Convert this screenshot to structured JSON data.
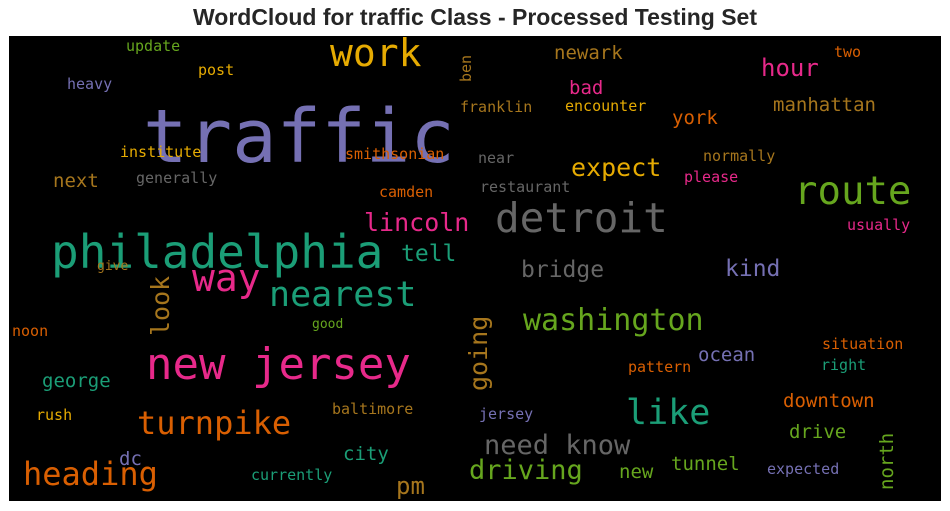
{
  "chart_data": {
    "type": "wordcloud",
    "title": "WordCloud for traffic Class - Processed Testing Set",
    "background": "#000000",
    "words": [
      {
        "text": "traffic",
        "weight": 100,
        "color": "#7570b3"
      },
      {
        "text": "philadelphia",
        "weight": 57,
        "color": "#1b9e77"
      },
      {
        "text": "new jersey",
        "weight": 55,
        "color": "#e7298a"
      },
      {
        "text": "detroit",
        "weight": 52,
        "color": "#666666"
      },
      {
        "text": "route",
        "weight": 50,
        "color": "#66a61e"
      },
      {
        "text": "work",
        "weight": 48,
        "color": "#e6ab02"
      },
      {
        "text": "way",
        "weight": 48,
        "color": "#e7298a"
      },
      {
        "text": "nearest",
        "weight": 44,
        "color": "#1b9e77"
      },
      {
        "text": "like",
        "weight": 44,
        "color": "#1b9e77"
      },
      {
        "text": "turnpike",
        "weight": 40,
        "color": "#d95f02"
      },
      {
        "text": "heading",
        "weight": 40,
        "color": "#d95f02"
      },
      {
        "text": "washington",
        "weight": 37,
        "color": "#66a61e"
      },
      {
        "text": "need know",
        "weight": 33,
        "color": "#666666"
      },
      {
        "text": "driving",
        "weight": 33,
        "color": "#66a61e"
      },
      {
        "text": "expect",
        "weight": 31,
        "color": "#e6ab02"
      },
      {
        "text": "lincoln",
        "weight": 31,
        "color": "#e7298a"
      },
      {
        "text": "look",
        "weight": 31,
        "color": "#a6761d"
      },
      {
        "text": "going",
        "weight": 31,
        "color": "#a6761d"
      },
      {
        "text": "hour",
        "weight": 30,
        "color": "#e7298a"
      },
      {
        "text": "pm",
        "weight": 30,
        "color": "#a6761d"
      },
      {
        "text": "bridge",
        "weight": 28,
        "color": "#666666"
      },
      {
        "text": "kind",
        "weight": 28,
        "color": "#7570b3"
      },
      {
        "text": "tell",
        "weight": 28,
        "color": "#1b9e77"
      },
      {
        "text": "manhattan",
        "weight": 24,
        "color": "#a6761d"
      },
      {
        "text": "york",
        "weight": 24,
        "color": "#d95f02"
      },
      {
        "text": "newark",
        "weight": 24,
        "color": "#a6761d"
      },
      {
        "text": "bad",
        "weight": 24,
        "color": "#e7298a"
      },
      {
        "text": "ocean",
        "weight": 24,
        "color": "#7570b3"
      },
      {
        "text": "downtown",
        "weight": 24,
        "color": "#d95f02"
      },
      {
        "text": "drive",
        "weight": 24,
        "color": "#66a61e"
      },
      {
        "text": "north",
        "weight": 24,
        "color": "#66a61e"
      },
      {
        "text": "city",
        "weight": 24,
        "color": "#1b9e77"
      },
      {
        "text": "tunnel",
        "weight": 24,
        "color": "#66a61e"
      },
      {
        "text": "new",
        "weight": 24,
        "color": "#66a61e"
      },
      {
        "text": "next",
        "weight": 24,
        "color": "#a6761d"
      },
      {
        "text": "george",
        "weight": 24,
        "color": "#1b9e77"
      },
      {
        "text": "dc",
        "weight": 24,
        "color": "#7570b3"
      },
      {
        "text": "update",
        "weight": 18,
        "color": "#66a61e"
      },
      {
        "text": "post",
        "weight": 18,
        "color": "#e6ab02"
      },
      {
        "text": "heavy",
        "weight": 18,
        "color": "#7570b3"
      },
      {
        "text": "ben",
        "weight": 18,
        "color": "#a6761d"
      },
      {
        "text": "franklin",
        "weight": 18,
        "color": "#a6761d"
      },
      {
        "text": "encounter",
        "weight": 18,
        "color": "#e6ab02"
      },
      {
        "text": "two",
        "weight": 18,
        "color": "#d95f02"
      },
      {
        "text": "institute",
        "weight": 18,
        "color": "#e6ab02"
      },
      {
        "text": "smithsonian",
        "weight": 18,
        "color": "#d95f02"
      },
      {
        "text": "near",
        "weight": 18,
        "color": "#666666"
      },
      {
        "text": "normally",
        "weight": 18,
        "color": "#a6761d"
      },
      {
        "text": "generally",
        "weight": 18,
        "color": "#666666"
      },
      {
        "text": "camden",
        "weight": 18,
        "color": "#d95f02"
      },
      {
        "text": "restaurant",
        "weight": 18,
        "color": "#666666"
      },
      {
        "text": "please",
        "weight": 18,
        "color": "#e7298a"
      },
      {
        "text": "usually",
        "weight": 18,
        "color": "#e7298a"
      },
      {
        "text": "give",
        "weight": 15,
        "color": "#a6761d"
      },
      {
        "text": "good",
        "weight": 15,
        "color": "#66a61e"
      },
      {
        "text": "noon",
        "weight": 18,
        "color": "#d95f02"
      },
      {
        "text": "situation",
        "weight": 18,
        "color": "#d95f02"
      },
      {
        "text": "right",
        "weight": 18,
        "color": "#1b9e77"
      },
      {
        "text": "pattern",
        "weight": 18,
        "color": "#d95f02"
      },
      {
        "text": "rush",
        "weight": 18,
        "color": "#e6ab02"
      },
      {
        "text": "baltimore",
        "weight": 18,
        "color": "#a6761d"
      },
      {
        "text": "jersey",
        "weight": 18,
        "color": "#7570b3"
      },
      {
        "text": "expected",
        "weight": 18,
        "color": "#7570b3"
      },
      {
        "text": "currently",
        "weight": 18,
        "color": "#1b9e77"
      }
    ]
  }
}
